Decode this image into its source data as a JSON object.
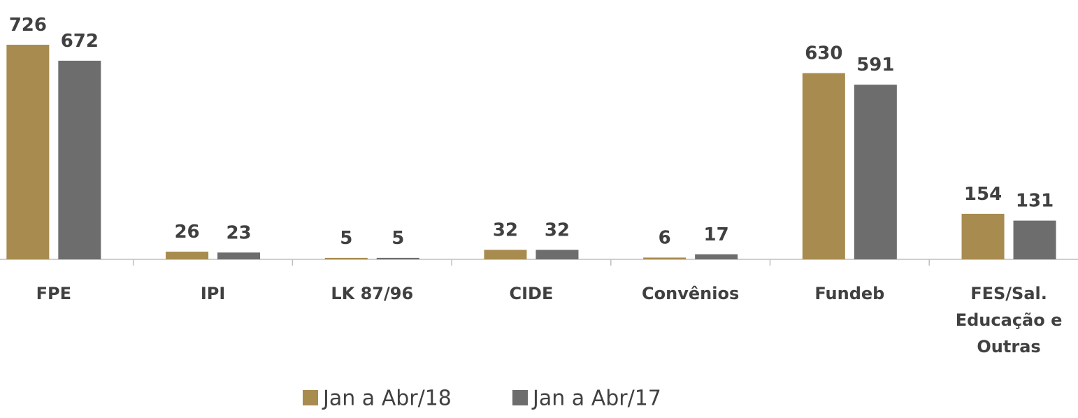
{
  "chart_data": {
    "type": "bar",
    "categories": [
      "FPE",
      "IPI",
      "LK 87/96",
      "CIDE",
      "Convênios",
      "Fundeb",
      "FES/Sal. Educação e Outras"
    ],
    "series": [
      {
        "name": "Jan a Abr/18",
        "color": "#a88b4f",
        "values": [
          726,
          26,
          5,
          32,
          6,
          630,
          154
        ]
      },
      {
        "name": "Jan a Abr/17",
        "color": "#6d6d6d",
        "values": [
          672,
          23,
          5,
          32,
          17,
          591,
          131
        ]
      }
    ],
    "ylim": [
      0,
      800
    ]
  }
}
